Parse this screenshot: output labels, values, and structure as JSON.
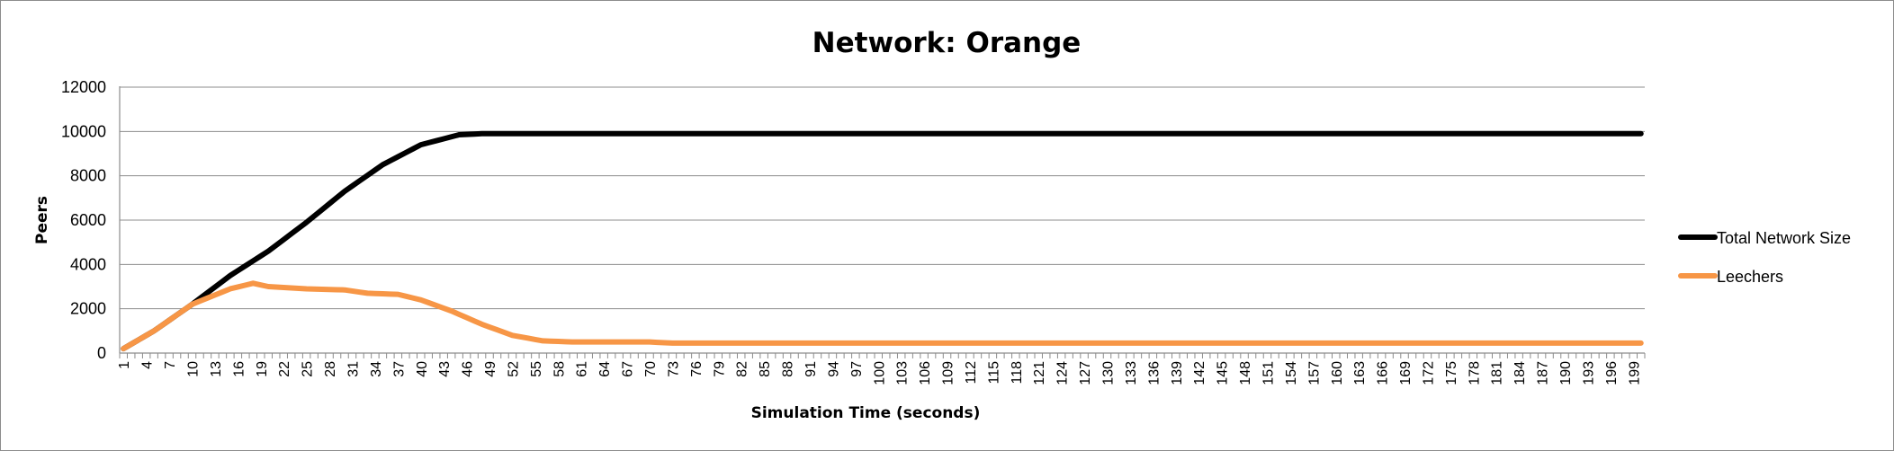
{
  "chart_data": {
    "type": "line",
    "title": "Network: Orange",
    "xlabel": "Simulation Time (seconds)",
    "ylabel": "Peers",
    "ylim": [
      0,
      12000
    ],
    "yticks": [
      "0",
      "2000",
      "4000",
      "6000",
      "8000",
      "10000",
      "12000"
    ],
    "x_range": [
      1,
      200
    ],
    "x_tick_labels_every": 3,
    "grid": true,
    "legend_placement": "right",
    "series": [
      {
        "name": "Total Network Size",
        "color": "#000000",
        "points": [
          [
            1,
            200
          ],
          [
            5,
            1000
          ],
          [
            10,
            2200
          ],
          [
            15,
            3500
          ],
          [
            20,
            4600
          ],
          [
            25,
            5900
          ],
          [
            30,
            7300
          ],
          [
            35,
            8500
          ],
          [
            40,
            9400
          ],
          [
            45,
            9850
          ],
          [
            48,
            9900
          ],
          [
            200,
            9900
          ]
        ]
      },
      {
        "name": "Leechers",
        "color": "#f79646",
        "points": [
          [
            1,
            200
          ],
          [
            5,
            1000
          ],
          [
            10,
            2200
          ],
          [
            15,
            2900
          ],
          [
            18,
            3150
          ],
          [
            20,
            3000
          ],
          [
            25,
            2900
          ],
          [
            30,
            2850
          ],
          [
            33,
            2700
          ],
          [
            37,
            2650
          ],
          [
            40,
            2400
          ],
          [
            44,
            1900
          ],
          [
            48,
            1300
          ],
          [
            52,
            800
          ],
          [
            56,
            550
          ],
          [
            60,
            500
          ],
          [
            70,
            500
          ],
          [
            73,
            450
          ],
          [
            200,
            450
          ]
        ]
      }
    ]
  }
}
